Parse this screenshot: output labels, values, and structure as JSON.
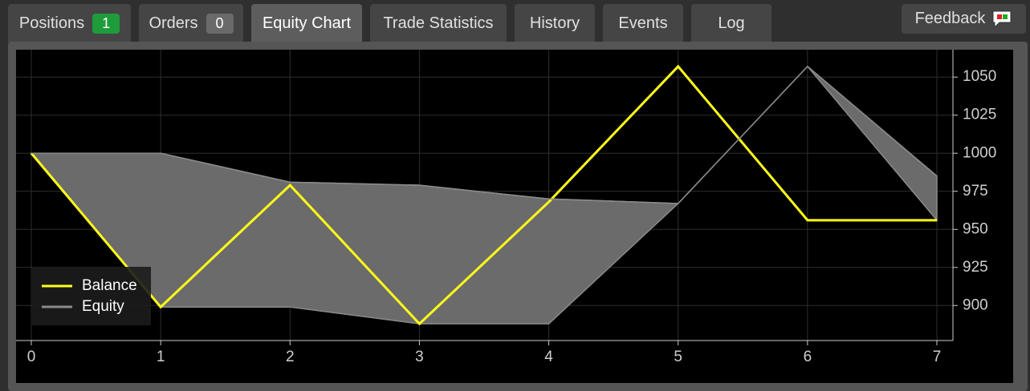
{
  "tabs": [
    {
      "label": "Positions",
      "badge": 1
    },
    {
      "label": "Orders",
      "badge": 0
    },
    {
      "label": "Equity Chart"
    },
    {
      "label": "Trade Statistics"
    },
    {
      "label": "History"
    },
    {
      "label": "Events"
    },
    {
      "label": "Log"
    }
  ],
  "feedback": "Feedback",
  "chart_data": {
    "type": "line",
    "x": [
      0,
      1,
      2,
      3,
      4,
      5,
      6,
      7
    ],
    "series": [
      {
        "name": "Balance",
        "color": "#ffff1a",
        "values": [
          1000,
          899,
          979,
          888,
          968,
          1057,
          956,
          956
        ]
      },
      {
        "name": "Equity",
        "color": "#8a8a8a",
        "fill": "#6b6b6b",
        "values": [
          1000,
          1000,
          981,
          979,
          970,
          967,
          1057,
          985
        ],
        "low": [
          1000,
          899,
          899,
          888,
          888,
          967,
          1057,
          956
        ]
      }
    ],
    "xlim": [
      0,
      7
    ],
    "xticks": [
      0,
      1,
      2,
      3,
      4,
      5,
      6,
      7
    ],
    "ylim": [
      877,
      1068
    ],
    "yticks": [
      900,
      925,
      950,
      975,
      1000,
      1025,
      1050
    ],
    "grid": true,
    "legend": "lower left"
  }
}
